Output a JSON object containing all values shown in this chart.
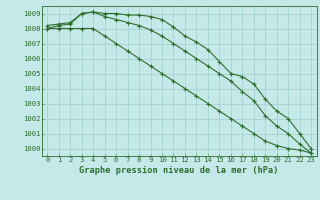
{
  "title": "Graphe pression niveau de la mer (hPa)",
  "background_color": "#c5e8e8",
  "grid_color": "#9ecece",
  "line_color": "#2d6e2d",
  "marker_color": "#2d6e2d",
  "xlim": [
    -0.5,
    23.5
  ],
  "ylim": [
    999.5,
    1009.5
  ],
  "yticks": [
    1000,
    1001,
    1002,
    1003,
    1004,
    1005,
    1006,
    1007,
    1008,
    1009
  ],
  "xticks": [
    0,
    1,
    2,
    3,
    4,
    5,
    6,
    7,
    8,
    9,
    10,
    11,
    12,
    13,
    14,
    15,
    16,
    17,
    18,
    19,
    20,
    21,
    22,
    23
  ],
  "series1": [
    1008.2,
    1008.3,
    1008.4,
    1009.0,
    1009.1,
    1009.0,
    1009.0,
    1008.9,
    1008.9,
    1008.8,
    1008.6,
    1008.1,
    1007.5,
    1007.1,
    1006.6,
    1005.8,
    1005.0,
    1004.8,
    1004.3,
    1003.3,
    1002.5,
    1002.0,
    1001.0,
    1000.0
  ],
  "series2": [
    1008.0,
    1008.2,
    1008.3,
    1009.0,
    1009.1,
    1008.8,
    1008.6,
    1008.4,
    1008.2,
    1007.9,
    1007.5,
    1007.0,
    1006.5,
    1006.0,
    1005.5,
    1005.0,
    1004.5,
    1003.8,
    1003.2,
    1002.2,
    1001.5,
    1001.0,
    1000.3,
    999.7
  ],
  "series3": [
    1008.0,
    1008.0,
    1008.0,
    1008.0,
    1008.0,
    1007.5,
    1007.0,
    1006.5,
    1006.0,
    1005.5,
    1005.0,
    1004.5,
    1004.0,
    1003.5,
    1003.0,
    1002.5,
    1002.0,
    1001.5,
    1001.0,
    1000.5,
    1000.2,
    1000.0,
    999.9,
    999.7
  ],
  "tick_fontsize": 5.2,
  "xlabel_fontsize": 6.2
}
